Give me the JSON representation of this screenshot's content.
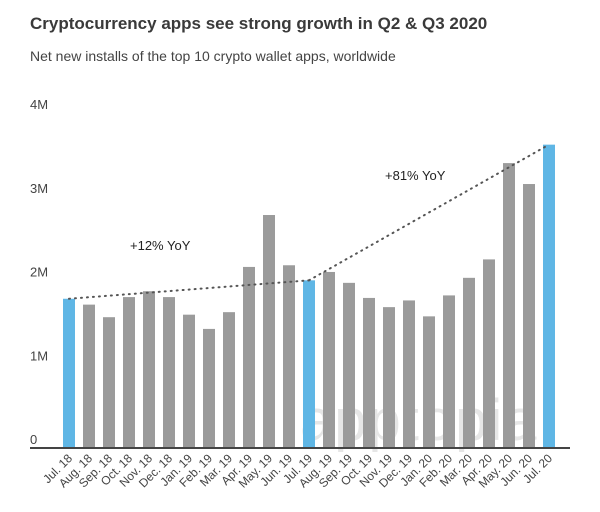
{
  "chart_data": {
    "type": "bar",
    "title": "Cryptocurrency apps see strong growth in Q2 & Q3 2020",
    "subtitle": "Net new installs of the top 10 crypto wallet apps, worldwide",
    "xlabel": "",
    "ylabel": "",
    "ylim": [
      0,
      4000000
    ],
    "yticks": [
      {
        "value": 0,
        "label": "0"
      },
      {
        "value": 1000000,
        "label": "1M"
      },
      {
        "value": 2000000,
        "label": "2M"
      },
      {
        "value": 3000000,
        "label": "3M"
      },
      {
        "value": 4000000,
        "label": "4M"
      }
    ],
    "grid": false,
    "categories": [
      "Jul. 18",
      "Aug. 18",
      "Sep. 18",
      "Oct. 18",
      "Nov. 18",
      "Dec. 18",
      "Jan. 19",
      "Feb. 19",
      "Mar. 19",
      "Apr. 19",
      "May. 19",
      "Jun. 19",
      "Jul. 19",
      "Aug. 19",
      "Sep. 19",
      "Oct. 19",
      "Nov. 19",
      "Dec. 19",
      "Jan. 20",
      "Feb. 20",
      "Mar. 20",
      "Apr. 20",
      "May. 20",
      "Jun. 20",
      "Jul. 20"
    ],
    "values": [
      1770000,
      1700000,
      1550000,
      1790000,
      1860000,
      1790000,
      1580000,
      1410000,
      1610000,
      2150000,
      2770000,
      2170000,
      1990000,
      2090000,
      1960000,
      1780000,
      1670000,
      1750000,
      1560000,
      1810000,
      2020000,
      2240000,
      3390000,
      3140000,
      3610000
    ],
    "highlighted": [
      "Jul. 18",
      "Jul. 19",
      "Jul. 20"
    ],
    "colors": {
      "bar": "#9b9b9b",
      "highlight": "#5fb6e5",
      "trend": "#555555",
      "axis": "#444444"
    },
    "annotations": [
      {
        "text": "+12% YoY",
        "from": "Jul. 18",
        "to": "Jul. 19"
      },
      {
        "text": "+81% YoY",
        "from": "Jul. 19",
        "to": "Jul. 20"
      }
    ],
    "watermark": "apptopia"
  }
}
